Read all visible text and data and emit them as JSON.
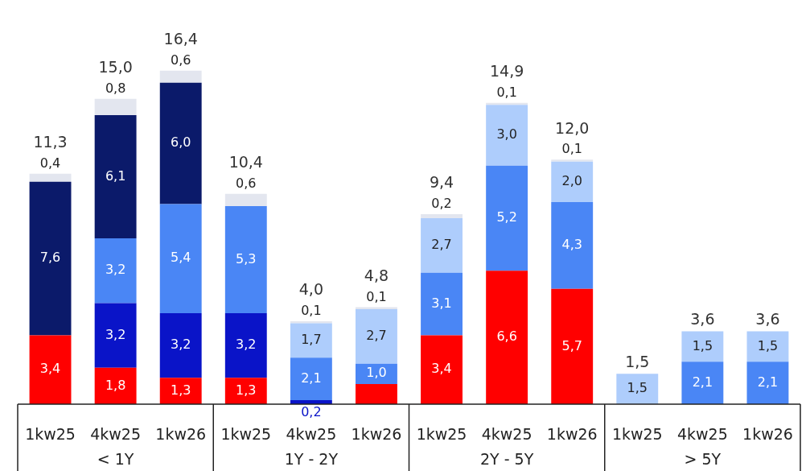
{
  "chart_data": {
    "type": "bar",
    "stacked": true,
    "categories": [
      "1kw25",
      "4kw25",
      "1kw26",
      "1kw25",
      "4kw25",
      "1kw26",
      "1kw25",
      "4kw25",
      "1kw26",
      "1kw25",
      "4kw25",
      "1kw26"
    ],
    "annotations": [
      "< 1Y",
      "1Y - 2Y",
      "2Y - 5Y",
      "> 5Y"
    ],
    "series": [
      {
        "color": "#ff0000",
        "values": [
          3.4,
          1.8,
          1.3,
          1.3,
          null,
          1.0,
          3.4,
          6.6,
          5.7,
          null,
          null,
          null
        ],
        "value_labels": [
          "3,4",
          "1,8",
          "1,3",
          "1,3",
          null,
          null,
          "3,4",
          "6,6",
          "5,7",
          null,
          null,
          null
        ]
      },
      {
        "color": "#0a14c8",
        "values": [
          null,
          3.2,
          3.2,
          3.2,
          0.2,
          null,
          null,
          null,
          null,
          null,
          null,
          null
        ],
        "value_labels": [
          null,
          "3,2",
          "3,2",
          "3,2",
          "0,2",
          null,
          null,
          null,
          null,
          null,
          null,
          null
        ]
      },
      {
        "color": "#4a86f5",
        "values": [
          null,
          3.2,
          5.4,
          5.3,
          2.1,
          1.0,
          3.1,
          5.2,
          4.3,
          null,
          2.1,
          2.1
        ],
        "value_labels": [
          null,
          "3,2",
          "5,4",
          "5,3",
          "2,1",
          "1,0",
          "3,1",
          "5,2",
          "4,3",
          null,
          "2,1",
          "2,1"
        ]
      },
      {
        "color": "#aecdfc",
        "values": [
          null,
          null,
          null,
          null,
          1.7,
          2.7,
          2.7,
          3.0,
          2.0,
          1.5,
          1.5,
          1.5
        ],
        "value_labels": [
          null,
          null,
          null,
          null,
          "1,7",
          "2,7",
          "2,7",
          "3,0",
          "2,0",
          "1,5",
          "1,5",
          "1,5"
        ]
      },
      {
        "color": "#0b1a6a",
        "values": [
          7.6,
          6.1,
          6.0,
          null,
          null,
          null,
          null,
          null,
          null,
          null,
          null,
          null
        ],
        "value_labels": [
          "7,6",
          "6,1",
          "6,0",
          null,
          null,
          null,
          null,
          null,
          null,
          null,
          null,
          null
        ]
      },
      {
        "color": "#e3e6ef",
        "values": [
          0.4,
          0.8,
          0.6,
          0.6,
          0.1,
          0.1,
          0.2,
          0.1,
          0.1,
          null,
          null,
          null
        ],
        "value_labels": [
          "0,4",
          "0,8",
          "0,6",
          "0,6",
          "0,1",
          "0,1",
          "0,2",
          "0,1",
          "0,1",
          null,
          null,
          null
        ]
      }
    ],
    "totals": [
      "11,3",
      "15,0",
      "16,4",
      "10,4",
      "4,0",
      "4,8",
      "9,4",
      "14,9",
      "12,0",
      "1,5",
      "3,6",
      "3,6"
    ]
  }
}
